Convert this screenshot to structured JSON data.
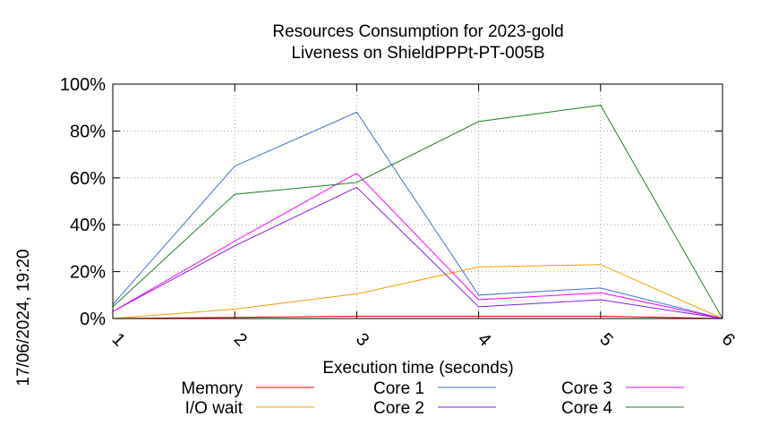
{
  "chart_data": {
    "type": "line",
    "title": "Resources Consumption for 2023-gold",
    "subtitle": "Liveness on ShieldPPPt-PT-005B",
    "xlabel": "Execution time (seconds)",
    "ylabel": "",
    "timestamp": "17/06/2024, 19:20",
    "x": [
      1,
      2,
      3,
      4,
      5,
      6
    ],
    "xlim": [
      1,
      6
    ],
    "ylim": [
      0,
      100
    ],
    "y_ticks": [
      "0%",
      "20%",
      "40%",
      "60%",
      "80%",
      "100%"
    ],
    "x_ticks": [
      "1",
      "2",
      "3",
      "4",
      "5",
      "6"
    ],
    "grid": true,
    "legend_position": "bottom",
    "series": [
      {
        "name": "Memory",
        "color": "#ff0000",
        "values": [
          0,
          0.5,
          1,
          1,
          1,
          0
        ]
      },
      {
        "name": "I/O wait",
        "color": "#f0a000",
        "values": [
          0,
          4,
          10.5,
          22,
          23,
          0
        ]
      },
      {
        "name": "Core 1",
        "color": "#4070d0",
        "values": [
          6,
          65,
          88,
          10,
          13,
          0
        ]
      },
      {
        "name": "Core 2",
        "color": "#8020e0",
        "values": [
          3,
          31,
          56,
          5,
          8,
          0
        ]
      },
      {
        "name": "Core 3",
        "color": "#ff00ff",
        "values": [
          3,
          33,
          62,
          8,
          11,
          0
        ]
      },
      {
        "name": "Core 4",
        "color": "#208020",
        "values": [
          5,
          53,
          58,
          84,
          91,
          0
        ]
      }
    ]
  }
}
